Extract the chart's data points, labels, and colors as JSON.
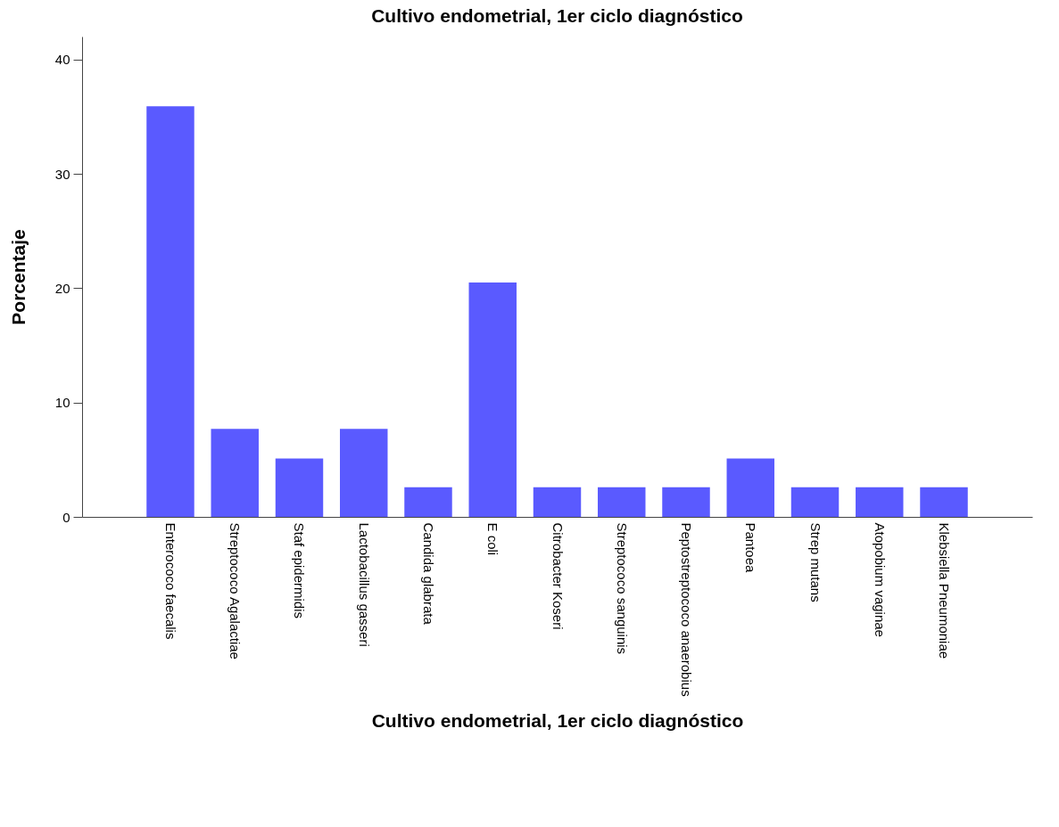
{
  "chart_data": {
    "type": "bar",
    "title": "Cultivo endometrial, 1er ciclo diagnóstico",
    "xlabel": "Cultivo endometrial, 1er ciclo diagnóstico",
    "ylabel": "Porcentaje",
    "categories": [
      "Enterococo faecalis",
      "Streptococo Agalactiae",
      "Staf epidermidis",
      "Lactobacillus gasseri",
      "Candida glabrata",
      "E coli",
      "Citrobacter Koseri",
      "Streptococo sanguinis",
      "Peptostreptococo anaerobius",
      "Pantoea",
      "Strep mutans",
      "Atopobium vaginae",
      "Klebsiella Pneumoniae"
    ],
    "values": [
      35.9,
      7.7,
      5.1,
      7.7,
      2.6,
      20.5,
      2.6,
      2.6,
      2.6,
      5.1,
      2.6,
      2.6,
      2.6
    ],
    "color": "#5a5aff",
    "ylim": [
      0,
      42
    ],
    "yticks": [
      0,
      10,
      20,
      30,
      40
    ],
    "grid": false
  }
}
